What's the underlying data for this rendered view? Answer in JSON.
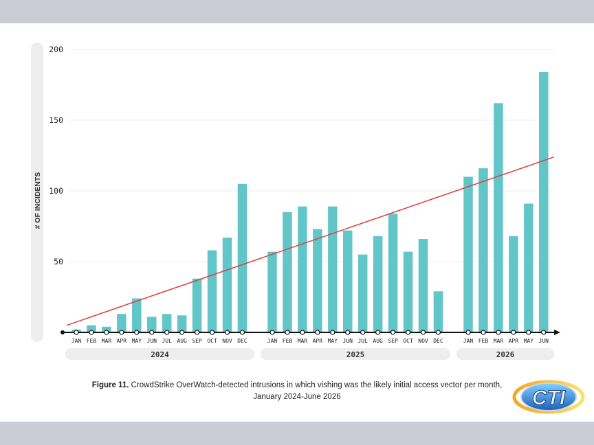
{
  "chart_data": {
    "type": "bar",
    "ylabel": "# OF INCIDENTS",
    "yticks": [
      50,
      100,
      150,
      200
    ],
    "ylim": [
      0,
      200
    ],
    "categories": [
      "JAN",
      "FEB",
      "MAR",
      "APR",
      "MAY",
      "JUN",
      "JUL",
      "AUG",
      "SEP",
      "OCT",
      "NOV",
      "DEC",
      "JAN",
      "FEB",
      "MAR",
      "APR",
      "MAY",
      "JUN",
      "JUL",
      "AUG",
      "SEP",
      "OCT",
      "NOV",
      "DEC",
      "JAN",
      "FEB",
      "MAR",
      "APR",
      "MAY",
      "JUN"
    ],
    "values": [
      2,
      5,
      4,
      13,
      24,
      11,
      13,
      12,
      38,
      58,
      67,
      105,
      57,
      85,
      89,
      73,
      89,
      72,
      55,
      68,
      84,
      57,
      66,
      29,
      110,
      116,
      162,
      68,
      91,
      184
    ],
    "year_groups": [
      {
        "label": "2024",
        "count": 12
      },
      {
        "label": "2025",
        "count": 12
      },
      {
        "label": "2026",
        "count": 6
      }
    ],
    "trendline": {
      "start": 5,
      "end": 124
    },
    "colors": {
      "bar": "#62c5c8",
      "trend": "#e23b3b",
      "axis": "#111111",
      "year_band": "#eeeeee"
    }
  },
  "caption": {
    "figure": "Figure 11.",
    "text": "CrowdStrike OverWatch-detected intrusions in which vishing was the likely initial access vector per month, January 2024-June 2026"
  },
  "logo": {
    "text": "CTI",
    "icon": "cti-logo"
  }
}
